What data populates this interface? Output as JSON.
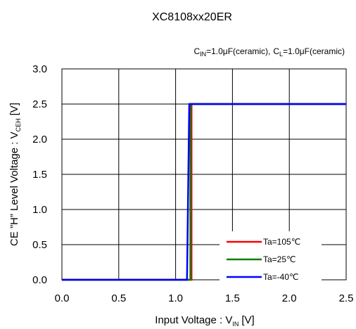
{
  "title": "XC8108xx20ER",
  "conditions": {
    "cin_main": "C",
    "cin_sub": "IN",
    "cin_value": "=1.0μF(ceramic),",
    "cl_main": "C",
    "cl_sub": "L",
    "cl_value": "=1.0μF(ceramic)"
  },
  "axis_labels": {
    "x_main": "Input Voltage : V",
    "x_sub": "IN",
    "x_unit": "[V]",
    "y_main": "CE ”H” Level Voltage : V",
    "y_sub": "CEH",
    "y_unit": "[V]"
  },
  "colors": {
    "red": "#ff0000",
    "green": "#008000",
    "blue": "#0000ff"
  },
  "chart_data": {
    "type": "line",
    "title": "XC8108xx20ER",
    "xlabel": "Input Voltage : VIN [V]",
    "ylabel": "CE ”H” Level Voltage : VCEH [V]",
    "xlim": [
      0.0,
      2.5
    ],
    "ylim": [
      0.0,
      3.0
    ],
    "x_ticks": [
      "0.0",
      "0.5",
      "1.0",
      "1.5",
      "2.0",
      "2.5"
    ],
    "y_ticks": [
      "0.0",
      "0.5",
      "1.0",
      "1.5",
      "2.0",
      "2.5",
      "3.0"
    ],
    "grid": true,
    "legend_position": "bottom-right",
    "series": [
      {
        "name": "Ta=105℃",
        "color": "#ff0000",
        "x": [
          0.0,
          1.14,
          1.14,
          2.5
        ],
        "y": [
          0.0,
          0.0,
          2.5,
          2.5
        ]
      },
      {
        "name": "Ta=25℃",
        "color": "#008000",
        "x": [
          0.0,
          1.13,
          1.13,
          2.5
        ],
        "y": [
          0.0,
          0.0,
          2.5,
          2.5
        ]
      },
      {
        "name": "Ta=-40℃",
        "color": "#0000ff",
        "x": [
          0.0,
          1.1,
          1.12,
          2.5
        ],
        "y": [
          0.0,
          0.0,
          2.5,
          2.5
        ]
      }
    ]
  }
}
